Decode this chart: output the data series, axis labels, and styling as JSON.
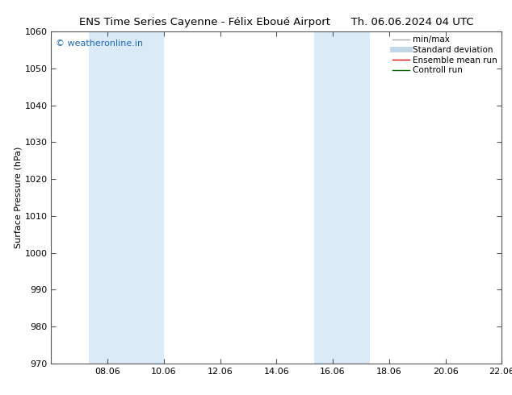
{
  "title_left": "ENS Time Series Cayenne - Félix Eboué Airport",
  "title_right": "Th. 06.06.2024 04 UTC",
  "ylabel": "Surface Pressure (hPa)",
  "ylim": [
    970,
    1060
  ],
  "yticks": [
    970,
    980,
    990,
    1000,
    1010,
    1020,
    1030,
    1040,
    1050,
    1060
  ],
  "xlim_start": 0,
  "xlim_end": 16,
  "xtick_positions": [
    2,
    4,
    6,
    8,
    10,
    12,
    14,
    16
  ],
  "xtick_labels": [
    "08.06",
    "10.06",
    "12.06",
    "14.06",
    "16.06",
    "18.06",
    "20.06",
    "22.06"
  ],
  "shaded_bands": [
    {
      "x_start": 1.33,
      "x_end": 4.0
    },
    {
      "x_start": 9.33,
      "x_end": 11.33
    }
  ],
  "shade_color": "#daeaf7",
  "watermark_text": "© weatheronline.in",
  "watermark_color": "#1a6bbf",
  "legend_items": [
    {
      "label": "min/max",
      "color": "#aaaaaa",
      "lw": 1.0
    },
    {
      "label": "Standard deviation",
      "color": "#c0d8e8",
      "lw": 5
    },
    {
      "label": "Ensemble mean run",
      "color": "#dd0000",
      "lw": 1.0
    },
    {
      "label": "Controll run",
      "color": "#006600",
      "lw": 1.0
    }
  ],
  "bg_color": "#ffffff",
  "title_fontsize": 9.5,
  "ylabel_fontsize": 8,
  "tick_fontsize": 8,
  "legend_fontsize": 7.5,
  "watermark_fontsize": 8
}
